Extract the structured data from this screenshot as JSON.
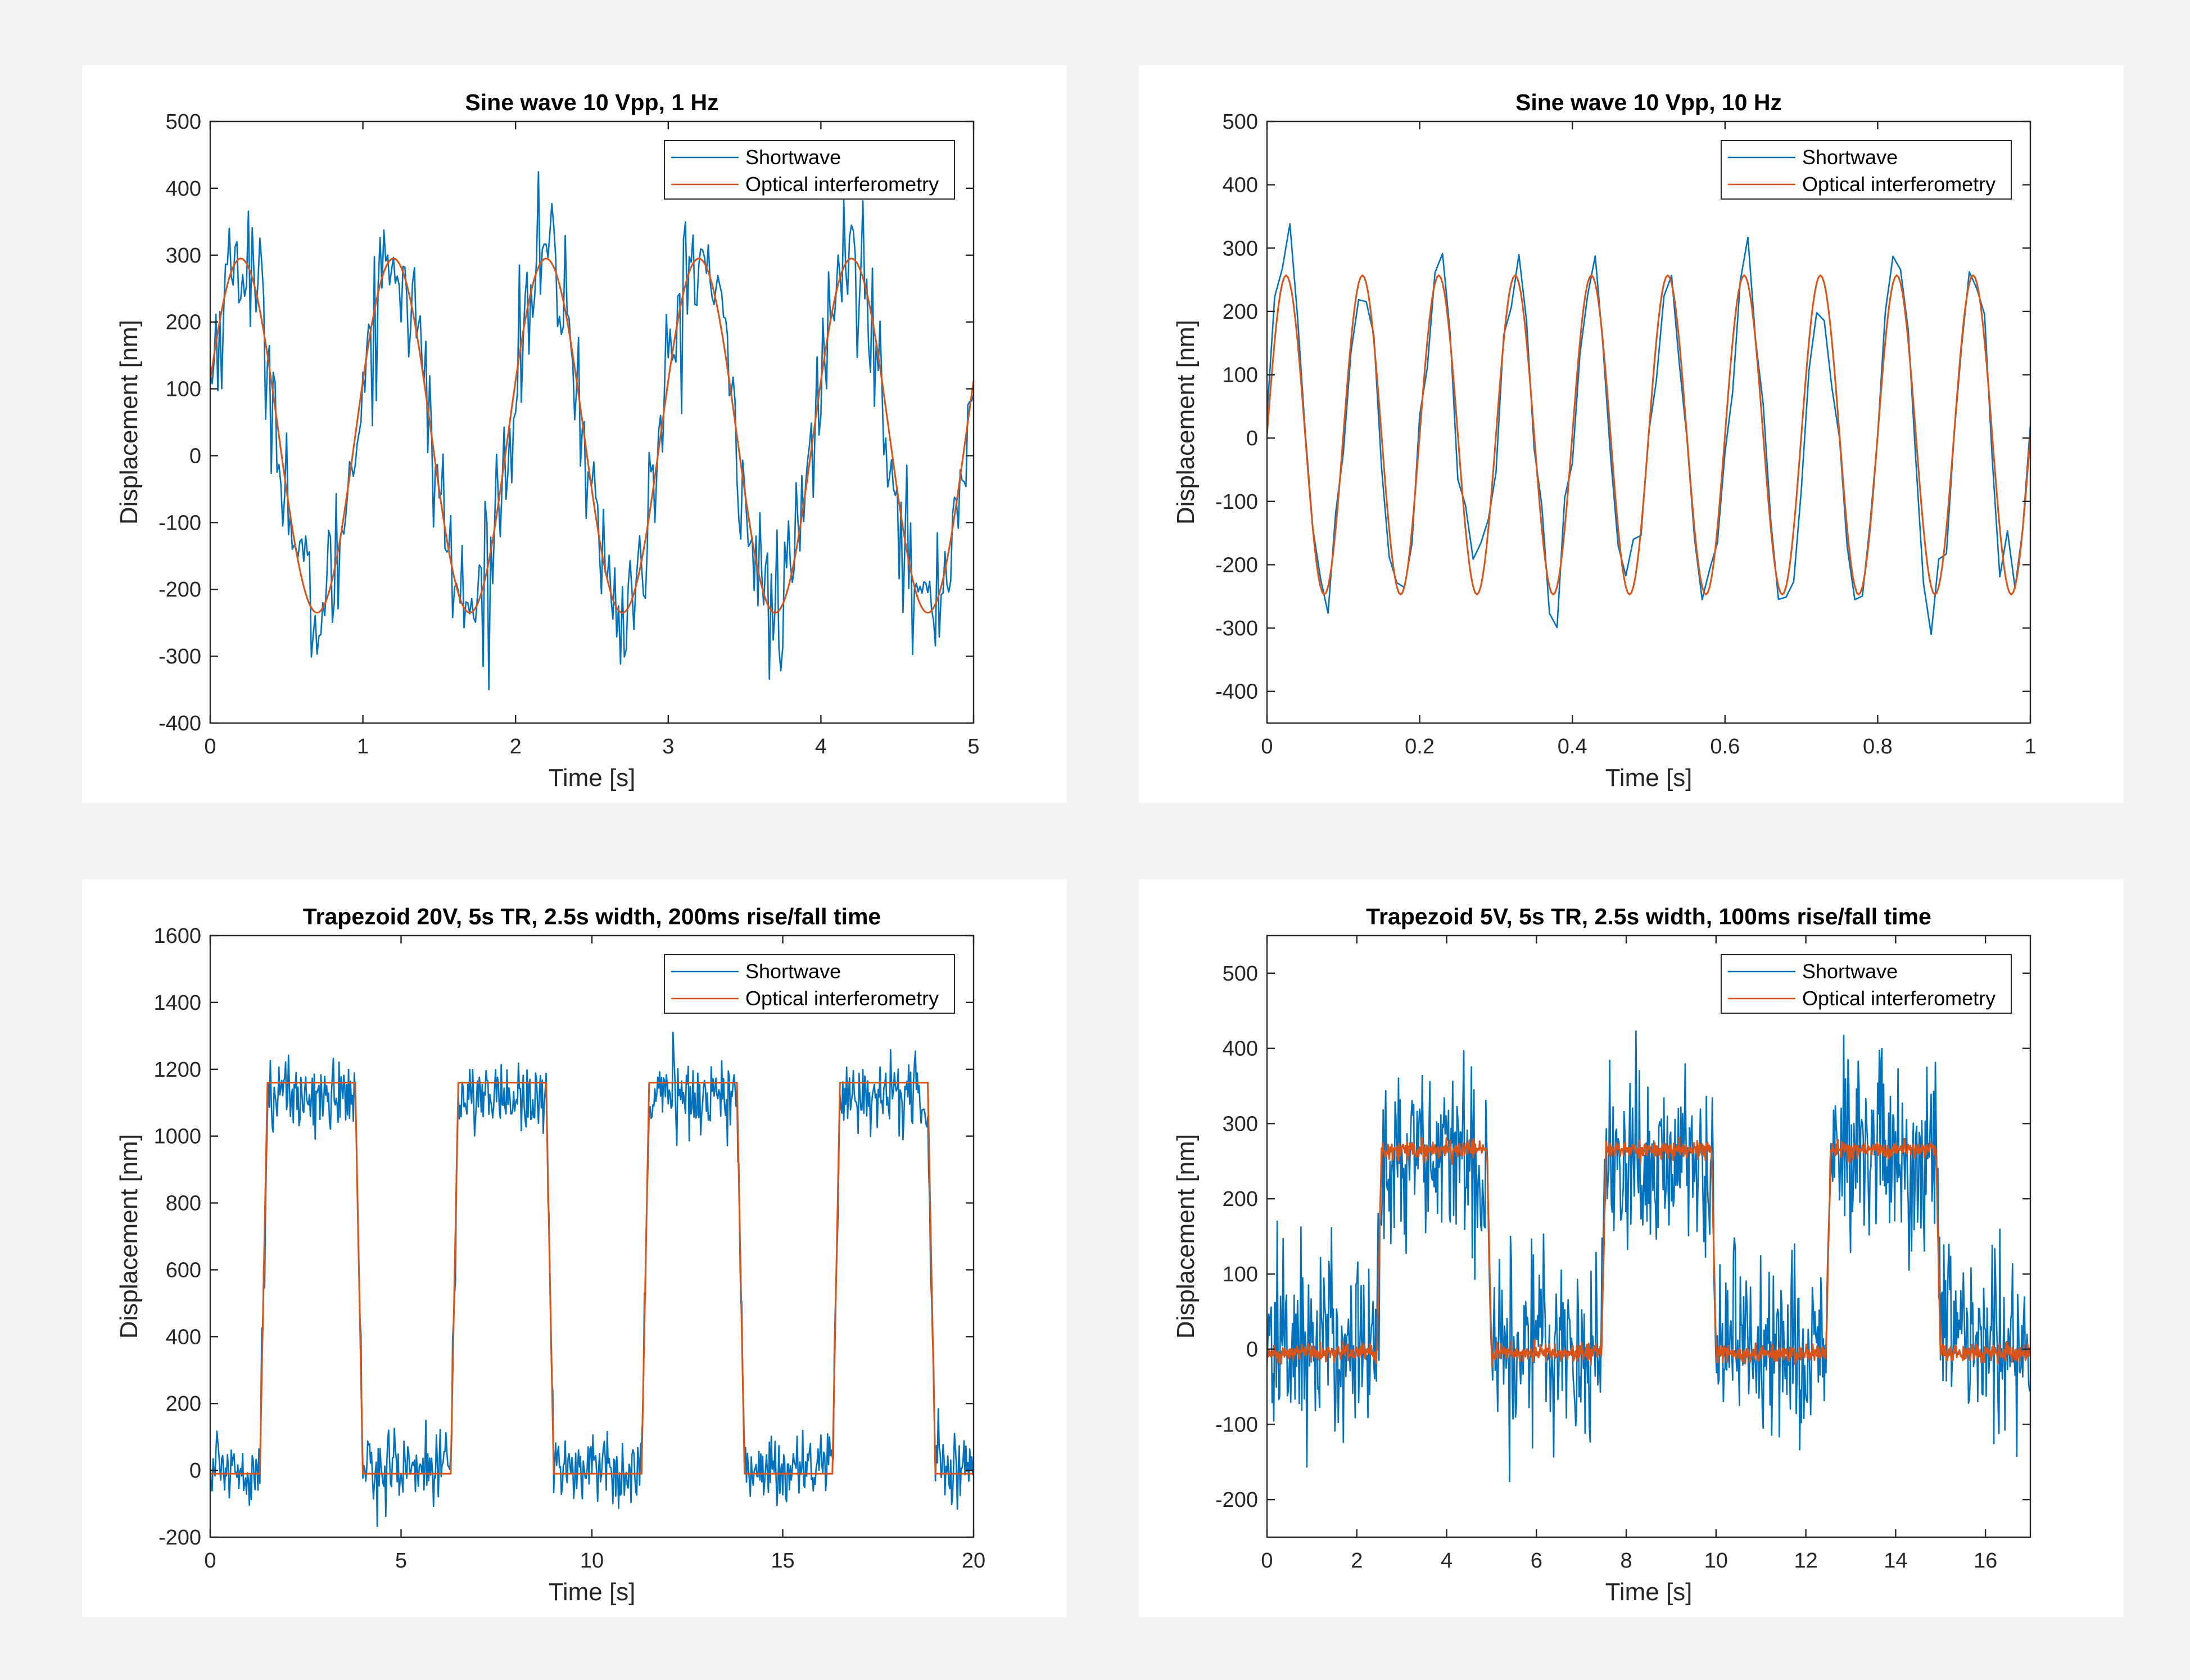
{
  "legend": {
    "shortwave": "Shortwave",
    "optical": "Optical interferometry"
  },
  "colors": {
    "shortwave": "#0072BD",
    "optical": "#D95319",
    "background": "#f2f2f2",
    "axes": "#262626"
  },
  "chart_data": [
    {
      "id": "p1",
      "type": "line",
      "title": "Sine wave 10 Vpp, 1 Hz",
      "xlabel": "Time [s]",
      "ylabel": "Displacement [nm]",
      "xlim": [
        0,
        5
      ],
      "ylim": [
        -400,
        500
      ],
      "xticks": [
        0,
        1,
        2,
        3,
        4,
        5
      ],
      "yticks": [
        -400,
        -300,
        -200,
        -100,
        0,
        100,
        200,
        300,
        400,
        500
      ],
      "legend_position": "top-right",
      "signal": {
        "kind": "sine",
        "frequency_hz": 1,
        "amplitude_nm": 265,
        "offset_nm": 30,
        "phase_peak_s": 0.2
      },
      "series": [
        {
          "name": "Shortwave",
          "noise_nm": 55,
          "samples": 400
        },
        {
          "name": "Optical interferometry",
          "noise_nm": 0,
          "samples": 400
        }
      ]
    },
    {
      "id": "p2",
      "type": "line",
      "title": "Sine wave 10 Vpp, 10 Hz",
      "xlabel": "Time [s]",
      "ylabel": "Displacement [nm]",
      "xlim": [
        0,
        1
      ],
      "ylim": [
        -450,
        500
      ],
      "xticks": [
        0,
        0.2,
        0.4,
        0.6,
        0.8,
        1
      ],
      "yticks": [
        -400,
        -300,
        -200,
        -100,
        0,
        100,
        200,
        300,
        400,
        500
      ],
      "legend_position": "top-right",
      "signal": {
        "kind": "sine",
        "frequency_hz": 10,
        "amplitude_nm": 252,
        "offset_nm": 5,
        "phase_peak_s": 0.025
      },
      "series": [
        {
          "name": "Shortwave",
          "noise_nm": 40,
          "samples": 100
        },
        {
          "name": "Optical interferometry",
          "noise_nm": 0,
          "samples": 400
        }
      ]
    },
    {
      "id": "p3",
      "type": "line",
      "title": "Trapezoid 20V, 5s TR, 2.5s width, 200ms rise/fall time",
      "xlabel": "Time [s]",
      "ylabel": "Displacement [nm]",
      "xlim": [
        0,
        20
      ],
      "ylim": [
        -200,
        1600
      ],
      "xticks": [
        0,
        5,
        10,
        15,
        20
      ],
      "yticks": [
        -200,
        0,
        200,
        400,
        600,
        800,
        1000,
        1200,
        1400,
        1600
      ],
      "legend_position": "top-right",
      "signal": {
        "kind": "trapezoid",
        "period_s": 5,
        "rise_start_s": 1.3,
        "width_s": 2.5,
        "ramp_s": 0.2,
        "low_nm": -10,
        "high_nm": 1160
      },
      "series": [
        {
          "name": "Shortwave",
          "noise_nm": 55,
          "low_shift_nm": 20,
          "high_shift_nm": -40,
          "samples": 800
        },
        {
          "name": "Optical interferometry",
          "noise_nm": 0,
          "samples": 800
        }
      ]
    },
    {
      "id": "p4",
      "type": "line",
      "title": "Trapezoid 5V, 5s TR, 2.5s width, 100ms rise/fall time",
      "xlabel": "Time [s]",
      "ylabel": "Displacement [nm]",
      "xlim": [
        0,
        17
      ],
      "ylim": [
        -250,
        550
      ],
      "xticks": [
        0,
        2,
        4,
        6,
        8,
        10,
        12,
        14,
        16
      ],
      "yticks": [
        -200,
        -100,
        0,
        100,
        200,
        300,
        400,
        500
      ],
      "legend_position": "top-right",
      "signal": {
        "kind": "trapezoid",
        "period_s": 5,
        "rise_start_s": 2.45,
        "width_s": 2.45,
        "ramp_s": 0.1,
        "low_nm": -5,
        "high_nm": 265
      },
      "series": [
        {
          "name": "Shortwave",
          "noise_nm": 65,
          "low_shift_nm": 15,
          "high_shift_nm": -15,
          "samples": 900
        },
        {
          "name": "Optical interferometry",
          "noise_nm": 6,
          "samples": 1400
        }
      ]
    }
  ]
}
